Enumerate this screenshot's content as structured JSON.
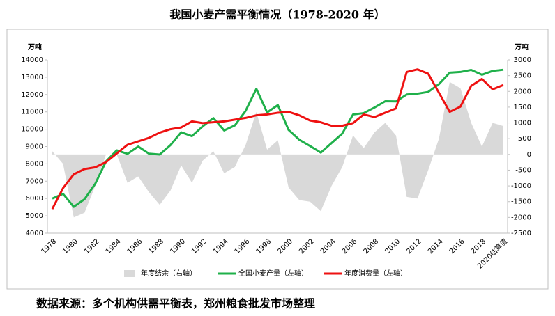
{
  "chart_data": {
    "type": "combo",
    "title": "我国小麦产需平衡情况（1978-2020 年）",
    "y_unit": "万吨",
    "y2_unit": "万吨",
    "source": "数据来源：多个机构供需平衡表，郑州粮食批发市场整理",
    "categories": [
      "1978",
      null,
      "1980",
      null,
      "1982",
      null,
      "1984",
      null,
      "1986",
      null,
      "1988",
      null,
      "1990",
      null,
      "1992",
      null,
      "1994",
      null,
      "1996",
      null,
      "1998",
      null,
      "2000",
      null,
      "2002",
      null,
      "2004",
      null,
      "2006",
      null,
      "2008",
      null,
      "2010",
      null,
      "2012",
      null,
      "2014",
      null,
      "2016",
      null,
      "2018",
      null,
      "2020估算值"
    ],
    "ylim": [
      4000,
      14000
    ],
    "yticks": [
      4000,
      5000,
      6000,
      7000,
      8000,
      9000,
      10000,
      11000,
      12000,
      13000,
      14000
    ],
    "y2lim": [
      -2500,
      3000
    ],
    "y2ticks": [
      -2500,
      -2000,
      -1500,
      -1000,
      -500,
      0,
      500,
      1000,
      1500,
      2000,
      2500,
      3000
    ],
    "series": [
      {
        "name": "年度结余（右轴）",
        "type": "area",
        "axis": "y2",
        "color": "#d9d9d9",
        "values": [
          100,
          -300,
          -2000,
          -1850,
          -1000,
          0,
          0,
          -900,
          -700,
          -1200,
          -1600,
          -1150,
          -350,
          -900,
          -200,
          100,
          -600,
          -400,
          300,
          1350,
          150,
          450,
          -1050,
          -1450,
          -1500,
          -1800,
          -1000,
          -400,
          600,
          200,
          700,
          1000,
          600,
          -1350,
          -1400,
          -500,
          500,
          2300,
          2100,
          1000,
          250,
          1000,
          900
        ]
      },
      {
        "name": "全国小麦产量（左轴）",
        "type": "line",
        "color": "#1fb04a",
        "values": [
          6000,
          6270,
          5520,
          5960,
          6850,
          8140,
          8780,
          8580,
          9000,
          8590,
          8540,
          9080,
          9820,
          9600,
          10160,
          10640,
          9930,
          10220,
          11060,
          12330,
          10970,
          11390,
          9960,
          9390,
          9030,
          8650,
          9200,
          9750,
          10850,
          10930,
          11250,
          11610,
          11600,
          12000,
          12050,
          12150,
          12600,
          13260,
          13300,
          13420,
          13140,
          13360,
          13430
        ]
      },
      {
        "name": "年度消费量（左轴）",
        "type": "line",
        "color": "#ee1111",
        "values": [
          5400,
          6600,
          7400,
          7700,
          7800,
          8100,
          8600,
          9100,
          9300,
          9500,
          9800,
          10000,
          10100,
          10450,
          10350,
          10400,
          10450,
          10550,
          10650,
          10800,
          10850,
          10950,
          11000,
          10800,
          10500,
          10400,
          10200,
          10200,
          10350,
          10850,
          10700,
          10950,
          11200,
          13300,
          13450,
          13200,
          12100,
          11000,
          11300,
          12500,
          12900,
          12300,
          12550
        ]
      }
    ]
  }
}
